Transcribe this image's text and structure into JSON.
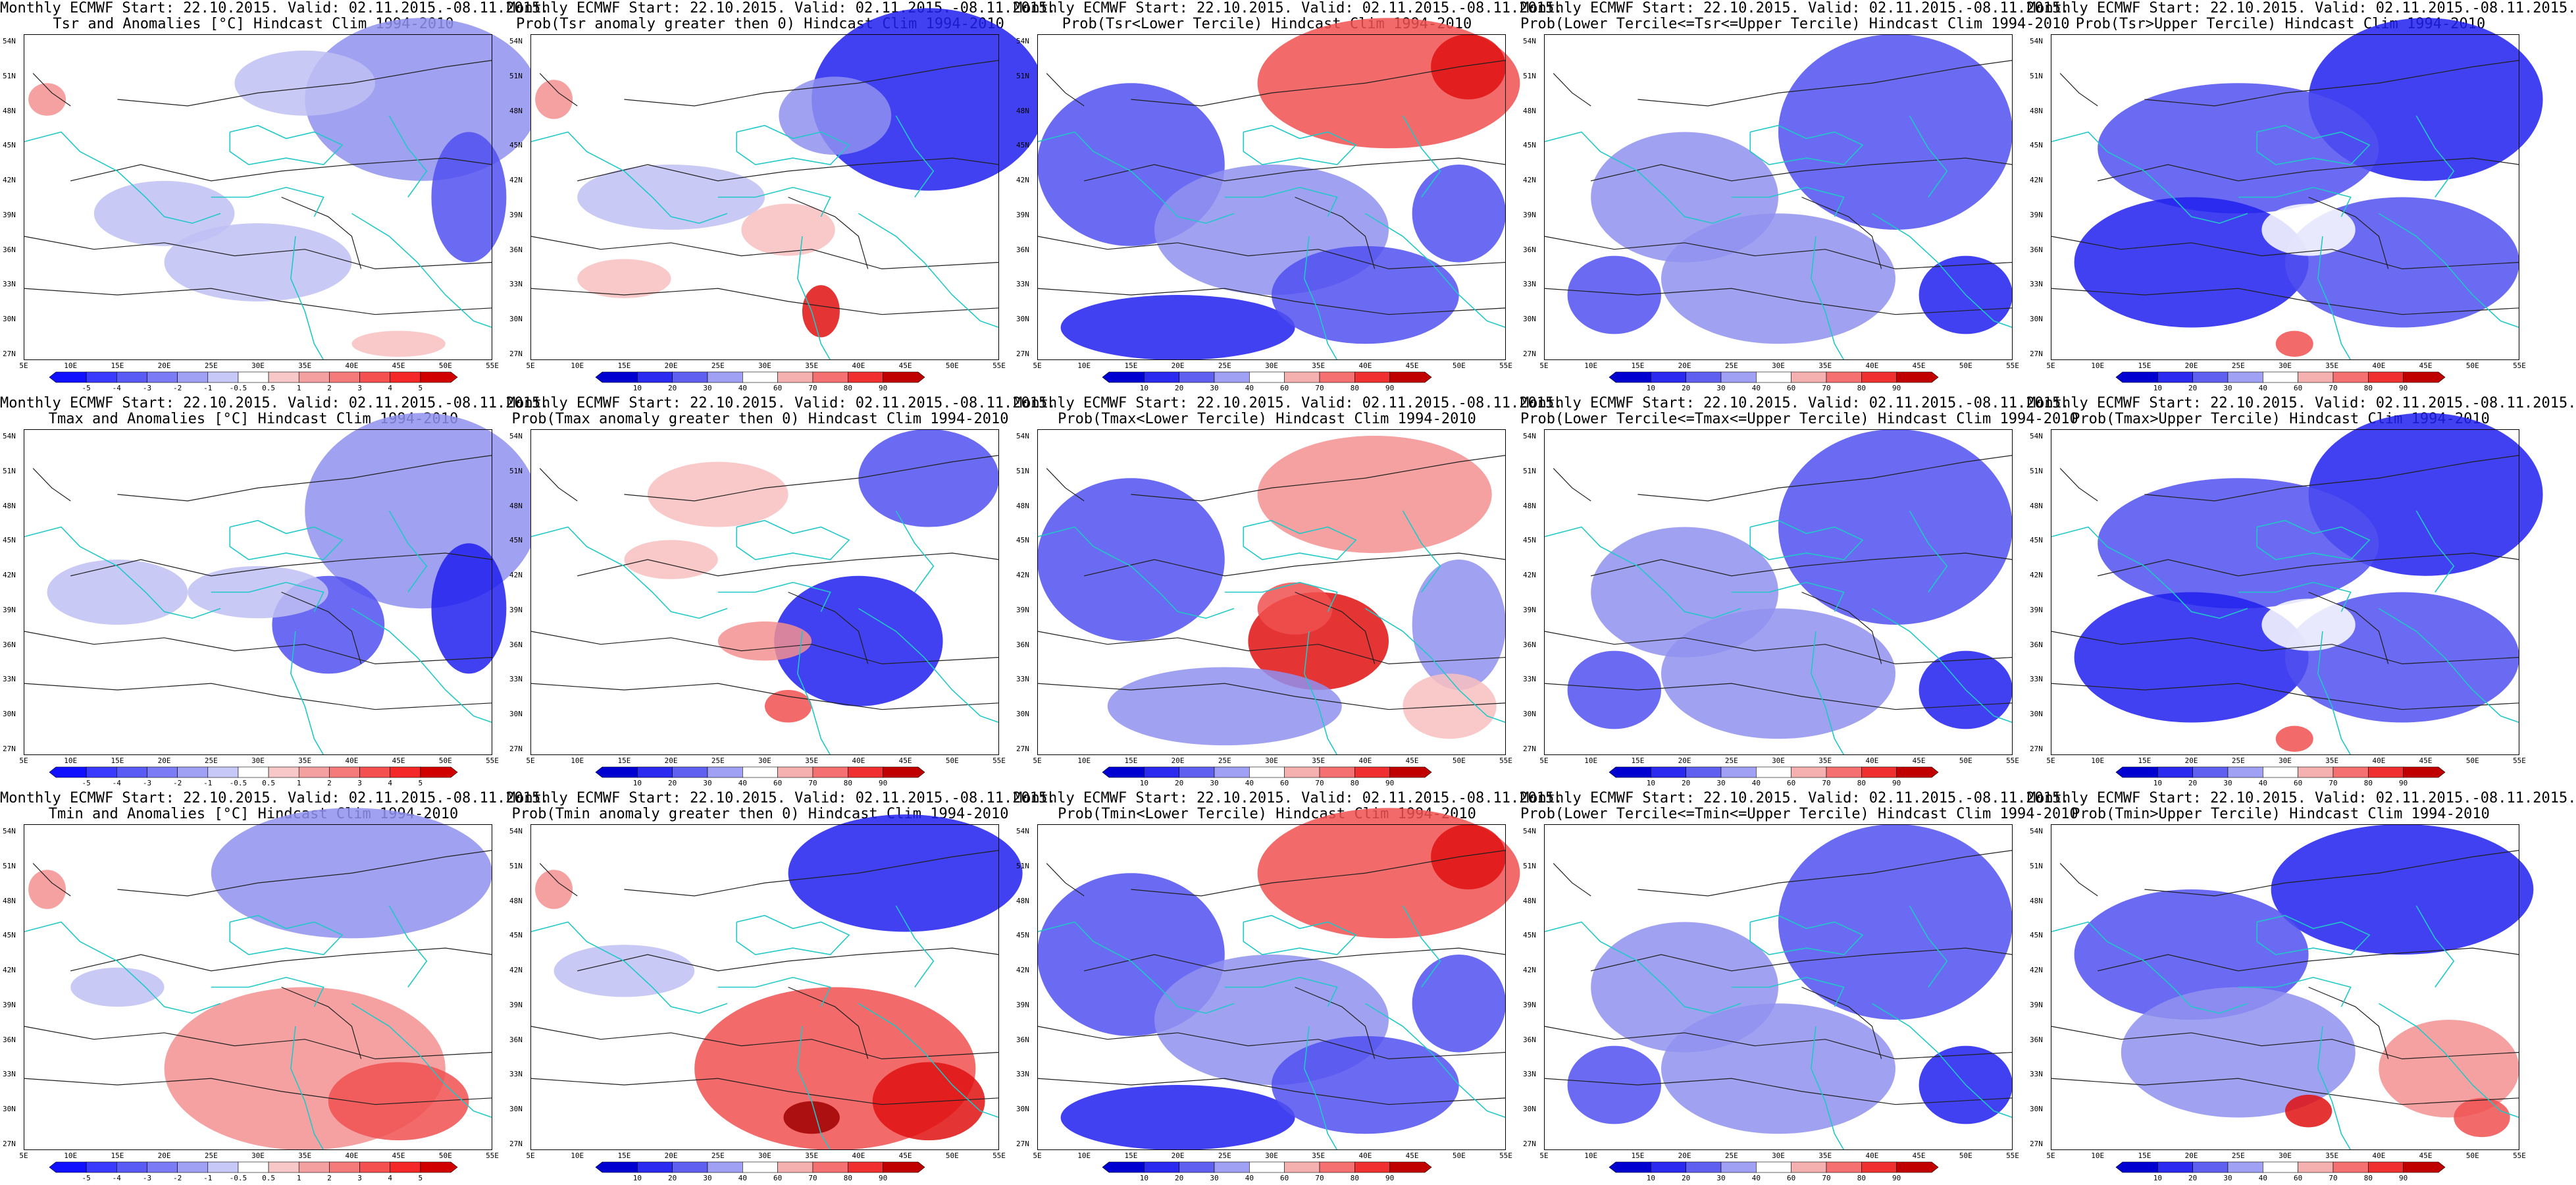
{
  "lat_ticks": [
    "54N",
    "51N",
    "48N",
    "45N",
    "42N",
    "39N",
    "36N",
    "33N",
    "30N",
    "27N"
  ],
  "lon_ticks": [
    "5E",
    "10E",
    "15E",
    "20E",
    "25E",
    "30E",
    "35E",
    "40E",
    "45E",
    "50E",
    "55E"
  ],
  "anom_scale": {
    "labels": [
      "-5",
      "-4",
      "-3",
      "-2",
      "-1",
      "-0.5",
      "0.5",
      "1",
      "2",
      "3",
      "4",
      "5"
    ],
    "colors": [
      "#1010ff",
      "#3a3aff",
      "#5a5af5",
      "#7b7bf5",
      "#a0a0f5",
      "#c8c8f8",
      "#ffffff",
      "#f8c8c8",
      "#f5a0a0",
      "#f57b7b",
      "#f55050",
      "#f52828",
      "#d00000"
    ]
  },
  "prob_scale": {
    "labels": [
      "10",
      "20",
      "30",
      "40",
      "60",
      "70",
      "80",
      "90"
    ],
    "colors": [
      "#0000d0",
      "#2a2af0",
      "#6060f0",
      "#a0a0f5",
      "#ffffff",
      "#f5b0b0",
      "#f57070",
      "#f03030",
      "#c00000"
    ]
  },
  "panels": [
    {
      "line1": "Monthly ECMWF Start: 22.10.2015. Valid: 02.11.2015.-08.11.2015.",
      "line2": "Tsr and Anomalies [°C] Hindcast Clim 1994-2010",
      "type": "anom",
      "pattern": "anom_tsr"
    },
    {
      "line1": "Monthly ECMWF Start: 22.10.2015. Valid: 02.11.2015.-08.11.2015.",
      "line2": "Prob(Tsr anomaly greater then 0) Hindcast Clim 1994-2010",
      "type": "prob",
      "pattern": "prob_tsr_gt0"
    },
    {
      "line1": "Monthly ECMWF Start: 22.10.2015. Valid: 02.11.2015.-08.11.2015.",
      "line2": "Prob(Tsr<Lower Tercile) Hindcast Clim 1994-2010",
      "type": "prob",
      "pattern": "prob_low_warm_ne"
    },
    {
      "line1": "Monthly ECMWF Start: 22.10.2015. Valid: 02.11.2015.-08.11.2015.",
      "line2": "Prob(Lower Tercile<=Tsr<=Upper Tercile) Hindcast Clim 1994-2010",
      "type": "prob",
      "pattern": "prob_mid"
    },
    {
      "line1": "Monthly ECMWF Start: 22.10.2015. Valid: 02.11.2015.-08.11.2015.",
      "line2": "Prob(Tsr>Upper Tercile) Hindcast Clim 1994-2010",
      "type": "prob",
      "pattern": "prob_up_blue"
    },
    {
      "line1": "Monthly ECMWF Start: 22.10.2015. Valid: 02.11.2015.-08.11.2015.",
      "line2": "Tmax and Anomalies [°C] Hindcast Clim 1994-2010",
      "type": "anom",
      "pattern": "anom_tmax"
    },
    {
      "line1": "Monthly ECMWF Start: 22.10.2015. Valid: 02.11.2015.-08.11.2015.",
      "line2": "Prob(Tmax anomaly greater then 0) Hindcast Clim 1994-2010",
      "type": "prob",
      "pattern": "prob_tmax_gt0"
    },
    {
      "line1": "Monthly ECMWF Start: 22.10.2015. Valid: 02.11.2015.-08.11.2015.",
      "line2": "Prob(Tmax<Lower Tercile) Hindcast Clim 1994-2010",
      "type": "prob",
      "pattern": "prob_tmax_low"
    },
    {
      "line1": "Monthly ECMWF Start: 22.10.2015. Valid: 02.11.2015.-08.11.2015.",
      "line2": "Prob(Lower Tercile<=Tmax<=Upper Tercile) Hindcast Clim 1994-2010",
      "type": "prob",
      "pattern": "prob_mid"
    },
    {
      "line1": "Monthly ECMWF Start: 22.10.2015. Valid: 02.11.2015.-08.11.2015.",
      "line2": "Prob(Tmax>Upper Tercile) Hindcast Clim 1994-2010",
      "type": "prob",
      "pattern": "prob_up_blue"
    },
    {
      "line1": "Monthly ECMWF Start: 22.10.2015. Valid: 02.11.2015.-08.11.2015.",
      "line2": "Tmin and Anomalies [°C] Hindcast Clim 1994-2010",
      "type": "anom",
      "pattern": "anom_tmin"
    },
    {
      "line1": "Monthly ECMWF Start: 22.10.2015. Valid: 02.11.2015.-08.11.2015.",
      "line2": "Prob(Tmin anomaly greater then 0) Hindcast Clim 1994-2010",
      "type": "prob",
      "pattern": "prob_tmin_gt0"
    },
    {
      "line1": "Monthly ECMWF Start: 22.10.2015. Valid: 02.11.2015.-08.11.2015.",
      "line2": "Prob(Tmin<Lower Tercile) Hindcast Clim 1994-2010",
      "type": "prob",
      "pattern": "prob_low_warm_ne"
    },
    {
      "line1": "Monthly ECMWF Start: 22.10.2015. Valid: 02.11.2015.-08.11.2015.",
      "line2": "Prob(Lower Tercile<=Tmin<=Upper Tercile) Hindcast Clim 1994-2010",
      "type": "prob",
      "pattern": "prob_mid"
    },
    {
      "line1": "Monthly ECMWF Start: 22.10.2015. Valid: 02.11.2015.-08.11.2015.",
      "line2": "Prob(Tmin>Upper Tercile) Hindcast Clim 1994-2010",
      "type": "prob",
      "pattern": "prob_up_red_se"
    }
  ]
}
